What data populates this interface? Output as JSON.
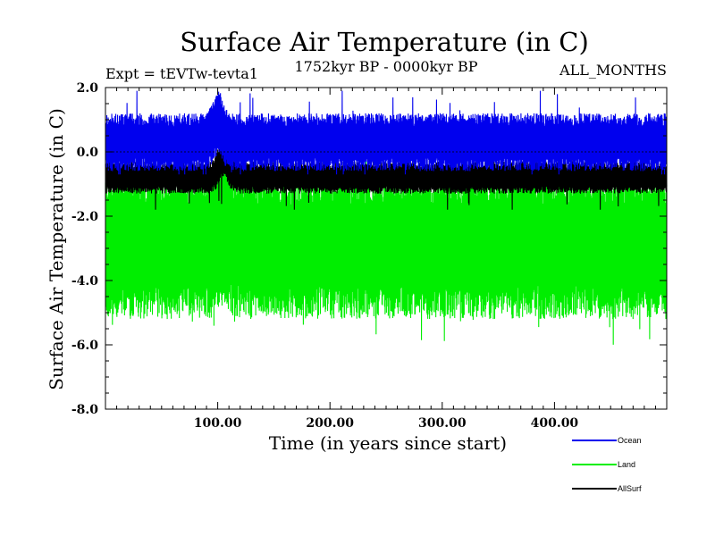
{
  "chart_data": {
    "type": "line",
    "title": "Surface Air Temperature (in C)",
    "subtitle_left": "Expt = tEVTw-tevta1",
    "subtitle_center": "1752kyr BP - 0000kyr BP",
    "subtitle_right": "ALL_MONTHS",
    "xlabel": "Time (in years since start)",
    "ylabel": "Surface Air Temperature (in C)",
    "xlim": [
      0,
      500
    ],
    "ylim": [
      -8.0,
      2.0
    ],
    "x_ticks": [
      {
        "value": 100,
        "label": "100.00"
      },
      {
        "value": 200,
        "label": "200.00"
      },
      {
        "value": 300,
        "label": "300.00"
      },
      {
        "value": 400,
        "label": "400.00"
      }
    ],
    "y_ticks": [
      {
        "value": 2,
        "label": "2.0"
      },
      {
        "value": 0,
        "label": "0.0"
      },
      {
        "value": -2,
        "label": "-2.0"
      },
      {
        "value": -4,
        "label": "-4.0"
      },
      {
        "value": -6,
        "label": "-6.0"
      },
      {
        "value": -8,
        "label": "-8.0"
      }
    ],
    "zero_line": 0,
    "legend_position": "bottom-right",
    "series": [
      {
        "name": "Land",
        "color": "#00ee00",
        "mean": -2.9,
        "envelope_hi": -0.6,
        "envelope_lo": -5.2,
        "peak_year": 105,
        "peak_value": 0.2,
        "min_value": -6.2
      },
      {
        "name": "AllSurf",
        "color": "#000000",
        "mean": -0.8,
        "envelope_hi": -0.3,
        "envelope_lo": -1.3,
        "peak_year": 105,
        "peak_value": 0.1,
        "min_value": -1.8
      },
      {
        "name": "Ocean",
        "color": "#0000ee",
        "mean": 0.3,
        "envelope_hi": 1.2,
        "envelope_lo": -0.6,
        "peak_year": 100,
        "peak_value": 1.9,
        "min_value": -0.7
      }
    ],
    "legend": [
      {
        "name": "Ocean",
        "color": "#0000ee"
      },
      {
        "name": "Land",
        "color": "#00ee00"
      },
      {
        "name": "AllSurf",
        "color": "#000000"
      }
    ]
  }
}
